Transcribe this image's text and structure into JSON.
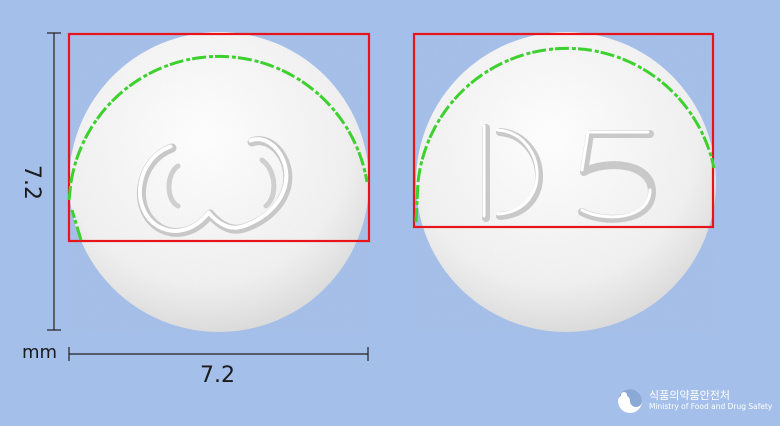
{
  "dimensions": {
    "width_label": "7.2",
    "height_label": "7.2",
    "unit": "mm"
  },
  "pills": [
    {
      "side": "front",
      "imprint_description": "logo"
    },
    {
      "side": "back",
      "imprint_text": "D5"
    }
  ],
  "logo": {
    "korean": "식품의약품안전처",
    "english": "Ministry of Food and Drug Safety"
  },
  "colors": {
    "background": "#a4bfe9",
    "pill": "#f2f2f2",
    "box": "#e8141c",
    "contour": "#3cd12e"
  }
}
